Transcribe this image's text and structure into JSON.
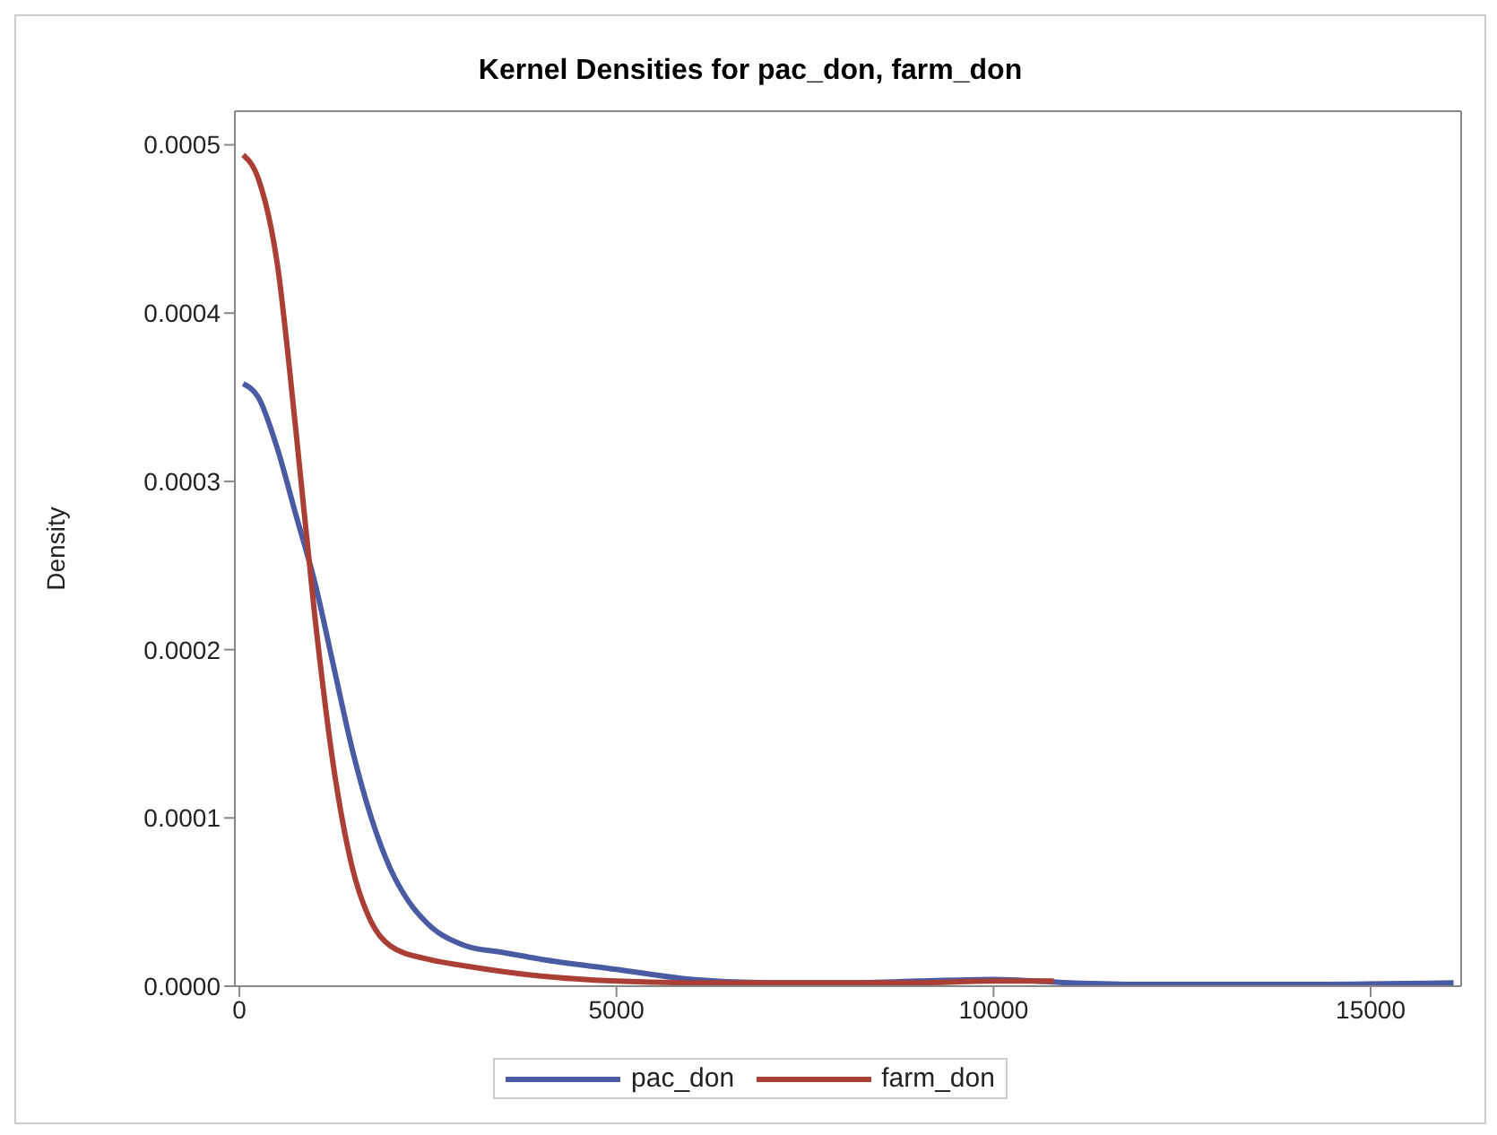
{
  "chart_data": {
    "type": "line",
    "title": "Kernel Densities for pac_don, farm_don",
    "ylabel": "Density",
    "xlim": [
      -60,
      16200
    ],
    "xticks": [
      0,
      5000,
      10000,
      15000
    ],
    "ylim": [
      0,
      0.00052
    ],
    "yticks": [
      {
        "value": 0,
        "label": "0.0000"
      },
      {
        "value": 0.0001,
        "label": "0.0001"
      },
      {
        "value": 0.0002,
        "label": "0.0002"
      },
      {
        "value": 0.0003,
        "label": "0.0003"
      },
      {
        "value": 0.0004,
        "label": "0.0004"
      },
      {
        "value": 0.0005,
        "label": "0.0005"
      }
    ],
    "grid": false,
    "legend": "bottom",
    "marker": "none",
    "line_style": "solid",
    "series": [
      {
        "name": "pac_don",
        "color": "#4a5ba3",
        "x": [
          50,
          250,
          500,
          750,
          1000,
          1250,
          1500,
          1750,
          2000,
          2250,
          2500,
          3000,
          3500,
          4000,
          5000,
          6000,
          7000,
          8000,
          9000,
          10000,
          11000,
          12000,
          14000,
          16100
        ],
        "values": [
          0.000358,
          0.00035,
          0.00032,
          0.00028,
          0.00024,
          0.00019,
          0.00014,
          0.0001,
          7e-05,
          5e-05,
          3.7e-05,
          2.4e-05,
          2e-05,
          1.6e-05,
          1e-05,
          4e-06,
          2e-06,
          2e-06,
          3e-06,
          4e-06,
          2e-06,
          1e-06,
          1e-06,
          2e-06
        ]
      },
      {
        "name": "farm_don",
        "color": "#a93f35",
        "x": [
          50,
          250,
          500,
          750,
          1000,
          1250,
          1500,
          1750,
          2000,
          2500,
          3000,
          4000,
          5000,
          6000,
          7000,
          8000,
          9000,
          10000,
          10800
        ],
        "values": [
          0.000494,
          0.00048,
          0.00043,
          0.00033,
          0.00022,
          0.00013,
          7e-05,
          3.8e-05,
          2.4e-05,
          1.6e-05,
          1.2e-05,
          6e-06,
          3e-06,
          2e-06,
          2e-06,
          2e-06,
          2e-06,
          3e-06,
          3e-06
        ]
      }
    ]
  }
}
